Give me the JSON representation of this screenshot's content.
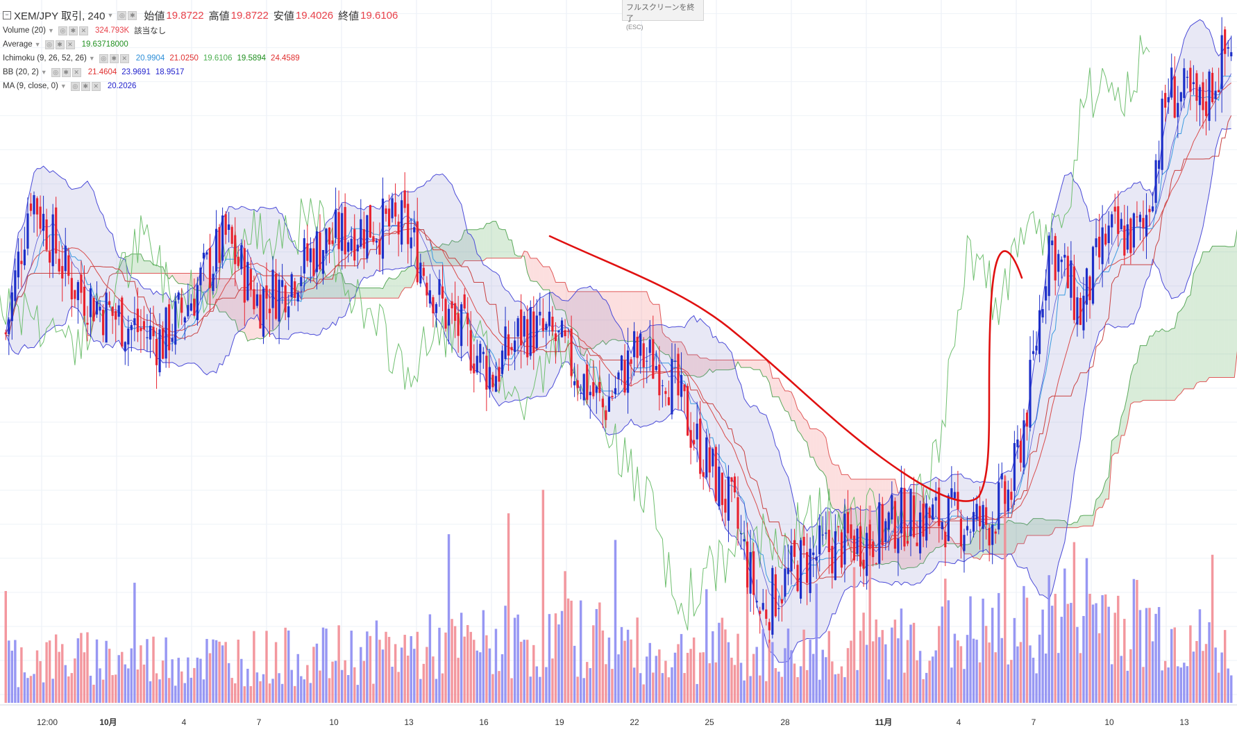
{
  "header": {
    "symbol": "XEM/JPY 取引, 240",
    "open_label": "始値",
    "open_value": "19.8722",
    "high_label": "高値",
    "high_value": "19.8722",
    "low_label": "安値",
    "low_value": "19.4026",
    "close_label": "終値",
    "close_value": "19.6106"
  },
  "indicators": [
    {
      "name": "Volume (20)",
      "values": [
        "324.793K",
        "該当なし"
      ],
      "colors": [
        "#e8414a",
        "#333333"
      ]
    },
    {
      "name": "Average",
      "values": [
        "19.63718000"
      ],
      "colors": [
        "#1f8f1f"
      ]
    },
    {
      "name": "Ichimoku (9, 26, 52, 26)",
      "values": [
        "20.9904",
        "21.0250",
        "19.6106",
        "19.5894",
        "24.4589"
      ],
      "colors": [
        "#2e8fd8",
        "#e03030",
        "#4caf50",
        "#1f8f1f",
        "#e03030"
      ]
    },
    {
      "name": "BB (20, 2)",
      "values": [
        "21.4604",
        "23.9691",
        "18.9517"
      ],
      "colors": [
        "#e03030",
        "#2222cc",
        "#2222cc"
      ]
    },
    {
      "name": "MA (9, close, 0)",
      "values": [
        "20.2026"
      ],
      "colors": [
        "#2222cc"
      ]
    }
  ],
  "fullscreen": {
    "label": "フルスクリーンを終了",
    "hint": "(ESC)"
  },
  "colors": {
    "up": "#1c2ec8",
    "down": "#e8222e",
    "vol_up": "#8c8cf2",
    "vol_down": "#f28c94"
  },
  "chart_data": {
    "type": "candlestick",
    "interval_hours": 4,
    "ylim": [
      15.0,
      25.2
    ],
    "x_tick_labels": [
      "12:00",
      "10月",
      "4",
      "7",
      "10",
      "13",
      "16",
      "19",
      "22",
      "25",
      "28",
      "11月",
      "4",
      "7",
      "10",
      "13"
    ],
    "candles": {
      "open": [],
      "close": []
    },
    "series_seed": [
      [
        0,
        20.3
      ],
      [
        8,
        22.4
      ],
      [
        20,
        21.1
      ],
      [
        30,
        20.7
      ],
      [
        40,
        20.4
      ],
      [
        50,
        20.2
      ],
      [
        60,
        20.9
      ],
      [
        70,
        21.7
      ],
      [
        80,
        20.8
      ],
      [
        88,
        21.0
      ],
      [
        100,
        21.6
      ],
      [
        115,
        21.9
      ],
      [
        127,
        21.85
      ],
      [
        140,
        20.6
      ],
      [
        155,
        19.7
      ],
      [
        165,
        20.4
      ],
      [
        175,
        20.2
      ],
      [
        190,
        19.2
      ],
      [
        200,
        20.0
      ],
      [
        210,
        19.8
      ],
      [
        220,
        18.7
      ],
      [
        232,
        17.6
      ],
      [
        240,
        16.2
      ],
      [
        252,
        16.9
      ],
      [
        265,
        17.2
      ],
      [
        275,
        17.3
      ],
      [
        285,
        17.6
      ],
      [
        300,
        17.6
      ],
      [
        312,
        17.5
      ],
      [
        320,
        18.0
      ],
      [
        326,
        19.5
      ],
      [
        332,
        21.7
      ],
      [
        342,
        20.6
      ],
      [
        350,
        21.7
      ],
      [
        362,
        21.8
      ],
      [
        370,
        23.9
      ],
      [
        380,
        23.6
      ],
      [
        390,
        24.6
      ]
    ],
    "volume_seed": [
      [
        0,
        90
      ],
      [
        100,
        95
      ],
      [
        190,
        140
      ],
      [
        205,
        95
      ],
      [
        232,
        110
      ],
      [
        240,
        95
      ],
      [
        326,
        150
      ],
      [
        340,
        210
      ],
      [
        390,
        100
      ]
    ]
  }
}
